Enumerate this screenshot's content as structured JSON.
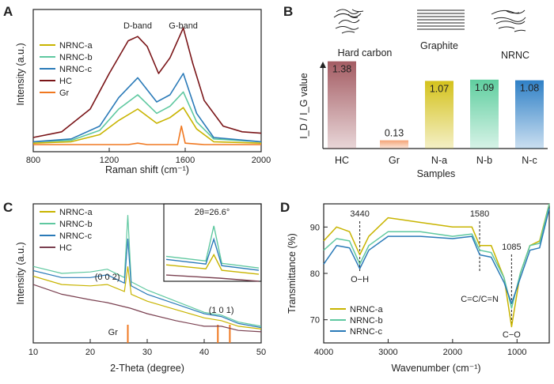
{
  "panels": {
    "A": {
      "label": "A"
    },
    "B": {
      "label": "B"
    },
    "C": {
      "label": "C"
    },
    "D": {
      "label": "D"
    }
  },
  "chart_data": [
    {
      "id": "A",
      "type": "line",
      "xlabel": "Raman shift (cm⁻¹)",
      "ylabel": "Intensity (a.u.)",
      "xlim": [
        800,
        2000
      ],
      "xticks": [
        800,
        1200,
        1600,
        2000
      ],
      "xtick_labels": [
        "800",
        "1200",
        "1600",
        "2000"
      ],
      "annotations": [
        {
          "text": "D-band",
          "x": 1350
        },
        {
          "text": "G-band",
          "x": 1590
        }
      ],
      "legend_position": "top-left",
      "series": [
        {
          "name": "NRNC-a",
          "color": "#c8b400",
          "points": [
            [
              800,
              0.06
            ],
            [
              1000,
              0.07
            ],
            [
              1150,
              0.12
            ],
            [
              1250,
              0.22
            ],
            [
              1350,
              0.3
            ],
            [
              1450,
              0.2
            ],
            [
              1520,
              0.24
            ],
            [
              1590,
              0.31
            ],
            [
              1660,
              0.16
            ],
            [
              1750,
              0.07
            ],
            [
              2000,
              0.06
            ]
          ]
        },
        {
          "name": "NRNC-b",
          "color": "#5fc8a0",
          "points": [
            [
              800,
              0.07
            ],
            [
              1000,
              0.08
            ],
            [
              1150,
              0.15
            ],
            [
              1250,
              0.3
            ],
            [
              1350,
              0.4
            ],
            [
              1450,
              0.27
            ],
            [
              1520,
              0.32
            ],
            [
              1590,
              0.42
            ],
            [
              1660,
              0.21
            ],
            [
              1750,
              0.09
            ],
            [
              2000,
              0.07
            ]
          ]
        },
        {
          "name": "NRNC-c",
          "color": "#2a7ab8",
          "points": [
            [
              800,
              0.07
            ],
            [
              1000,
              0.09
            ],
            [
              1150,
              0.18
            ],
            [
              1250,
              0.38
            ],
            [
              1350,
              0.52
            ],
            [
              1450,
              0.35
            ],
            [
              1520,
              0.4
            ],
            [
              1590,
              0.55
            ],
            [
              1660,
              0.27
            ],
            [
              1750,
              0.1
            ],
            [
              2000,
              0.07
            ]
          ]
        },
        {
          "name": "HC",
          "color": "#7a1518",
          "points": [
            [
              800,
              0.1
            ],
            [
              950,
              0.14
            ],
            [
              1100,
              0.3
            ],
            [
              1200,
              0.55
            ],
            [
              1300,
              0.78
            ],
            [
              1350,
              0.81
            ],
            [
              1400,
              0.74
            ],
            [
              1460,
              0.55
            ],
            [
              1520,
              0.66
            ],
            [
              1590,
              0.87
            ],
            [
              1640,
              0.62
            ],
            [
              1700,
              0.36
            ],
            [
              1800,
              0.18
            ],
            [
              1900,
              0.14
            ],
            [
              2000,
              0.13
            ]
          ]
        },
        {
          "name": "Gr",
          "color": "#f07820",
          "points": [
            [
              800,
              0.05
            ],
            [
              1300,
              0.05
            ],
            [
              1350,
              0.06
            ],
            [
              1400,
              0.05
            ],
            [
              1560,
              0.05
            ],
            [
              1580,
              0.18
            ],
            [
              1600,
              0.06
            ],
            [
              1700,
              0.05
            ],
            [
              2000,
              0.05
            ]
          ]
        }
      ]
    },
    {
      "id": "B",
      "type": "bar",
      "xlabel": "Samples",
      "ylabel": "I_D / I_G value",
      "categories": [
        "HC",
        "Gr",
        "N-a",
        "N-b",
        "N-c"
      ],
      "values": [
        1.38,
        0.13,
        1.07,
        1.09,
        1.08
      ],
      "value_labels": [
        "1.38",
        "0.13",
        "1.07",
        "1.09",
        "1.08"
      ],
      "colors": [
        "#a45c63",
        "#f4a476",
        "#d4c21c",
        "#5fce9f",
        "#2f80c6"
      ],
      "ylim": [
        0,
        1.5
      ],
      "images": [
        {
          "caption": "Hard carbon",
          "icon": "hard-carbon-sketch-icon"
        },
        {
          "caption": "Graphite",
          "icon": "graphite-layers-icon"
        },
        {
          "caption": "NRNC",
          "icon": "nrnc-sketch-icon"
        }
      ]
    },
    {
      "id": "C",
      "type": "line",
      "xlabel": "2-Theta (degree)",
      "ylabel": "Intensity (a.u.)",
      "xlim": [
        10,
        50
      ],
      "xticks": [
        10,
        20,
        30,
        40,
        50
      ],
      "xtick_labels": [
        "10",
        "20",
        "30",
        "40",
        "50"
      ],
      "annotations": [
        {
          "text": "(0 0 2)",
          "x": 23
        },
        {
          "text": "(1 0 1)",
          "x": 43
        },
        {
          "text": "Gr",
          "x": 24
        }
      ],
      "reference_peaks": {
        "name": "Gr",
        "color": "#f07820",
        "x": [
          26.6,
          42.4,
          44.5
        ]
      },
      "inset": {
        "label": "2θ=26.6°"
      },
      "legend_position": "top-left",
      "series": [
        {
          "name": "NRNC-a",
          "color": "#c8b400",
          "points": [
            [
              10,
              0.48
            ],
            [
              15,
              0.42
            ],
            [
              20,
              0.41
            ],
            [
              23,
              0.42
            ],
            [
              26,
              0.37
            ],
            [
              26.6,
              0.55
            ],
            [
              27.2,
              0.35
            ],
            [
              30,
              0.3
            ],
            [
              35,
              0.24
            ],
            [
              40,
              0.18
            ],
            [
              43,
              0.16
            ],
            [
              46,
              0.12
            ],
            [
              50,
              0.1
            ]
          ]
        },
        {
          "name": "NRNC-b",
          "color": "#5fc8a0",
          "points": [
            [
              10,
              0.55
            ],
            [
              15,
              0.5
            ],
            [
              20,
              0.51
            ],
            [
              23,
              0.53
            ],
            [
              26,
              0.47
            ],
            [
              26.6,
              0.92
            ],
            [
              27.2,
              0.44
            ],
            [
              30,
              0.38
            ],
            [
              35,
              0.3
            ],
            [
              40,
              0.22
            ],
            [
              43,
              0.2
            ],
            [
              46,
              0.15
            ],
            [
              50,
              0.12
            ]
          ]
        },
        {
          "name": "NRNC-c",
          "color": "#2a7ab8",
          "points": [
            [
              10,
              0.52
            ],
            [
              15,
              0.47
            ],
            [
              20,
              0.47
            ],
            [
              23,
              0.49
            ],
            [
              26,
              0.43
            ],
            [
              26.6,
              0.75
            ],
            [
              27.2,
              0.41
            ],
            [
              30,
              0.35
            ],
            [
              35,
              0.28
            ],
            [
              40,
              0.21
            ],
            [
              43,
              0.19
            ],
            [
              46,
              0.14
            ],
            [
              50,
              0.11
            ]
          ]
        },
        {
          "name": "HC",
          "color": "#7a4050",
          "points": [
            [
              10,
              0.42
            ],
            [
              15,
              0.35
            ],
            [
              20,
              0.31
            ],
            [
              23,
              0.29
            ],
            [
              27,
              0.25
            ],
            [
              30,
              0.21
            ],
            [
              35,
              0.16
            ],
            [
              40,
              0.12
            ],
            [
              43,
              0.12
            ],
            [
              46,
              0.09
            ],
            [
              50,
              0.08
            ]
          ]
        }
      ]
    },
    {
      "id": "D",
      "type": "line",
      "xlabel": "Wavenumber (cm⁻¹)",
      "ylabel": "Transmittance (%)",
      "xlim": [
        4000,
        500
      ],
      "ylim": [
        65,
        95
      ],
      "xticks": [
        4000,
        3000,
        2000,
        1000
      ],
      "xtick_labels": [
        "4000",
        "3000",
        "2000",
        "1000"
      ],
      "yticks": [
        70,
        80,
        90
      ],
      "ytick_labels": [
        "70",
        "80",
        "90"
      ],
      "annotations": [
        {
          "text": "3440",
          "x": 3440
        },
        {
          "text": "O−H",
          "x": 3440
        },
        {
          "text": "1580",
          "x": 1580
        },
        {
          "text": "C=C/C=N",
          "x": 1580
        },
        {
          "text": "1085",
          "x": 1085
        },
        {
          "text": "C−O",
          "x": 1085
        }
      ],
      "legend_position": "bottom-left",
      "series": [
        {
          "name": "NRNC-a",
          "color": "#c8b400",
          "points": [
            [
              4000,
              87
            ],
            [
              3800,
              90
            ],
            [
              3600,
              89
            ],
            [
              3440,
              84
            ],
            [
              3300,
              88
            ],
            [
              3000,
              92
            ],
            [
              2500,
              91
            ],
            [
              2000,
              90
            ],
            [
              1700,
              90
            ],
            [
              1580,
              86
            ],
            [
              1400,
              86
            ],
            [
              1200,
              79
            ],
            [
              1085,
              68.5
            ],
            [
              950,
              80
            ],
            [
              800,
              86
            ],
            [
              650,
              87
            ],
            [
              500,
              95
            ]
          ]
        },
        {
          "name": "NRNC-b",
          "color": "#5fc8a0",
          "points": [
            [
              4000,
              85
            ],
            [
              3800,
              87.5
            ],
            [
              3600,
              87
            ],
            [
              3440,
              82
            ],
            [
              3300,
              86
            ],
            [
              3000,
              89
            ],
            [
              2500,
              89
            ],
            [
              2000,
              88
            ],
            [
              1700,
              88.5
            ],
            [
              1580,
              85
            ],
            [
              1400,
              84.5
            ],
            [
              1200,
              79
            ],
            [
              1085,
              72.5
            ],
            [
              950,
              80
            ],
            [
              800,
              86
            ],
            [
              650,
              86.5
            ],
            [
              500,
              95
            ]
          ]
        },
        {
          "name": "NRNC-c",
          "color": "#2a7ab8",
          "points": [
            [
              4000,
              82
            ],
            [
              3800,
              86
            ],
            [
              3600,
              85.5
            ],
            [
              3440,
              81
            ],
            [
              3300,
              85
            ],
            [
              3000,
              88
            ],
            [
              2500,
              88
            ],
            [
              2000,
              87.5
            ],
            [
              1700,
              88
            ],
            [
              1580,
              84
            ],
            [
              1400,
              83.5
            ],
            [
              1200,
              78
            ],
            [
              1085,
              73.5
            ],
            [
              950,
              79
            ],
            [
              800,
              85
            ],
            [
              650,
              85.5
            ],
            [
              500,
              94
            ]
          ]
        }
      ]
    }
  ]
}
